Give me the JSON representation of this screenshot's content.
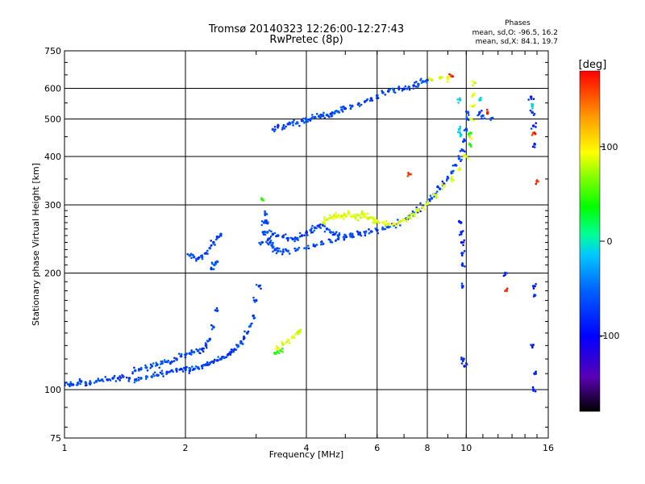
{
  "chart_data": {
    "type": "scatter",
    "title": "Tromsø 20140323 12:26:00-12:27:43",
    "subtitle": "RwPretec (8p)",
    "xlabel": "Frequency [MHz]",
    "ylabel": "Stationary phase Virtual Height [km]",
    "x_scale": "log",
    "y_scale": "log",
    "xlim": [
      1,
      16
    ],
    "ylim": [
      75,
      750
    ],
    "x_ticks": [
      1,
      2,
      4,
      6,
      8,
      10,
      16
    ],
    "y_ticks": [
      75,
      100,
      200,
      300,
      400,
      500,
      600,
      750
    ],
    "grid": true,
    "stats": {
      "heading": "Phases",
      "line_o": "mean, sd,O: -96.5, 16.2",
      "line_x": "mean, sd,X:  84.1, 19.7"
    },
    "colorbar": {
      "label": "[deg]",
      "ticks": [
        100,
        0,
        -100
      ],
      "range": [
        -180,
        180
      ]
    },
    "series": [
      {
        "phase": -100,
        "points": [
          [
            1.0,
            104
          ],
          [
            1.03,
            103
          ],
          [
            1.05,
            103
          ],
          [
            1.08,
            104
          ],
          [
            1.1,
            105
          ],
          [
            1.13,
            104
          ],
          [
            1.16,
            104
          ],
          [
            1.2,
            105
          ],
          [
            1.24,
            106
          ],
          [
            1.28,
            106
          ],
          [
            1.32,
            107
          ],
          [
            1.36,
            107
          ],
          [
            1.4,
            108
          ],
          [
            1.45,
            107
          ],
          [
            1.5,
            106
          ],
          [
            1.55,
            107
          ],
          [
            1.6,
            108
          ],
          [
            1.65,
            108
          ],
          [
            1.7,
            109
          ],
          [
            1.75,
            110
          ],
          [
            1.8,
            111
          ],
          [
            1.85,
            112
          ],
          [
            1.9,
            113
          ],
          [
            1.95,
            113
          ],
          [
            2.0,
            113
          ],
          [
            2.05,
            112
          ],
          [
            2.1,
            113
          ],
          [
            2.15,
            114
          ],
          [
            2.2,
            115
          ],
          [
            2.25,
            116
          ],
          [
            2.3,
            117
          ],
          [
            2.35,
            118
          ],
          [
            2.4,
            119
          ],
          [
            2.45,
            120
          ],
          [
            2.5,
            121
          ],
          [
            2.55,
            123
          ],
          [
            2.6,
            125
          ],
          [
            2.65,
            127
          ],
          [
            2.7,
            130
          ],
          [
            2.75,
            133
          ],
          [
            2.8,
            136
          ],
          [
            2.85,
            140
          ],
          [
            2.9,
            146
          ],
          [
            2.95,
            155
          ],
          [
            3.0,
            170
          ],
          [
            3.05,
            185
          ]
        ]
      },
      {
        "phase": -100,
        "points": [
          [
            1.5,
            112
          ],
          [
            1.55,
            113
          ],
          [
            1.6,
            114
          ],
          [
            1.65,
            115
          ],
          [
            1.7,
            116
          ],
          [
            1.75,
            117
          ],
          [
            1.8,
            118
          ],
          [
            1.85,
            118
          ],
          [
            1.9,
            120
          ],
          [
            1.95,
            122
          ],
          [
            2.0,
            123
          ],
          [
            2.05,
            124
          ],
          [
            2.1,
            125
          ],
          [
            2.15,
            126
          ],
          [
            2.2,
            127
          ],
          [
            2.25,
            130
          ],
          [
            2.3,
            135
          ],
          [
            2.35,
            145
          ],
          [
            2.4,
            160
          ]
        ]
      },
      {
        "phase": -100,
        "points": [
          [
            2.05,
            222
          ],
          [
            2.1,
            220
          ],
          [
            2.15,
            218
          ],
          [
            2.2,
            220
          ],
          [
            2.25,
            225
          ],
          [
            2.3,
            232
          ],
          [
            2.35,
            240
          ],
          [
            2.4,
            248
          ],
          [
            2.45,
            252
          ],
          [
            2.32,
            205
          ],
          [
            2.36,
            210
          ],
          [
            2.4,
            214
          ]
        ]
      },
      {
        "phase": -100,
        "points": [
          [
            3.1,
            240
          ],
          [
            3.12,
            255
          ],
          [
            3.14,
            270
          ],
          [
            3.16,
            285
          ],
          [
            3.18,
            270
          ],
          [
            3.2,
            255
          ],
          [
            3.22,
            245
          ],
          [
            3.25,
            240
          ],
          [
            3.28,
            236
          ],
          [
            3.3,
            233
          ],
          [
            3.35,
            230
          ],
          [
            3.4,
            228
          ],
          [
            3.5,
            227
          ],
          [
            3.6,
            228
          ],
          [
            3.8,
            230
          ],
          [
            4.0,
            232
          ],
          [
            4.2,
            235
          ],
          [
            4.4,
            238
          ],
          [
            4.6,
            241
          ],
          [
            4.8,
            245
          ],
          [
            5.0,
            248
          ],
          [
            5.2,
            250
          ],
          [
            5.4,
            252
          ],
          [
            5.6,
            254
          ],
          [
            5.8,
            256
          ],
          [
            6.0,
            258
          ],
          [
            6.2,
            260
          ],
          [
            6.4,
            263
          ],
          [
            6.6,
            266
          ],
          [
            6.8,
            270
          ],
          [
            7.0,
            275
          ],
          [
            7.2,
            280
          ],
          [
            7.4,
            286
          ],
          [
            7.6,
            292
          ],
          [
            7.8,
            298
          ],
          [
            8.0,
            305
          ],
          [
            8.2,
            312
          ],
          [
            8.4,
            320
          ],
          [
            8.6,
            330
          ],
          [
            8.8,
            340
          ],
          [
            9.0,
            352
          ],
          [
            9.2,
            365
          ],
          [
            9.4,
            380
          ],
          [
            9.6,
            395
          ],
          [
            9.8,
            415
          ],
          [
            9.9,
            440
          ],
          [
            10.0,
            470
          ],
          [
            10.05,
            500
          ],
          [
            10.1,
            520
          ]
        ]
      },
      {
        "phase": -100,
        "points": [
          [
            3.3,
            252
          ],
          [
            3.4,
            250
          ],
          [
            3.5,
            248
          ],
          [
            3.6,
            246
          ],
          [
            3.7,
            245
          ],
          [
            3.8,
            246
          ],
          [
            3.9,
            250
          ],
          [
            4.0,
            254
          ],
          [
            4.1,
            258
          ],
          [
            4.2,
            262
          ],
          [
            4.3,
            265
          ],
          [
            4.4,
            266
          ],
          [
            4.5,
            260
          ],
          [
            4.6,
            255
          ],
          [
            4.7,
            252
          ],
          [
            4.8,
            250
          ],
          [
            5.0,
            250
          ],
          [
            5.2,
            252
          ],
          [
            5.4,
            254
          ]
        ]
      },
      {
        "phase": -100,
        "points": [
          [
            3.3,
            470
          ],
          [
            3.4,
            480
          ],
          [
            3.5,
            475
          ],
          [
            3.6,
            485
          ],
          [
            3.7,
            490
          ],
          [
            3.8,
            488
          ],
          [
            3.9,
            495
          ],
          [
            4.0,
            498
          ],
          [
            4.1,
            500
          ],
          [
            4.2,
            505
          ],
          [
            4.3,
            508
          ],
          [
            4.4,
            510
          ],
          [
            4.5,
            512
          ],
          [
            4.6,
            515
          ],
          [
            4.7,
            518
          ],
          [
            4.8,
            522
          ],
          [
            4.9,
            528
          ],
          [
            5.0,
            532
          ],
          [
            5.2,
            540
          ],
          [
            5.4,
            548
          ],
          [
            5.6,
            555
          ],
          [
            5.8,
            565
          ],
          [
            6.0,
            575
          ],
          [
            6.2,
            585
          ]
        ]
      },
      {
        "phase": -100,
        "points": [
          [
            6.4,
            590
          ],
          [
            6.6,
            595
          ],
          [
            6.8,
            600
          ],
          [
            7.0,
            598
          ],
          [
            7.2,
            605
          ],
          [
            7.4,
            610
          ],
          [
            7.6,
            615
          ],
          [
            7.8,
            625
          ],
          [
            8.0,
            630
          ],
          [
            10.8,
            520
          ],
          [
            11.0,
            510
          ],
          [
            11.5,
            500
          ]
        ]
      },
      {
        "phase": -110,
        "points": [
          [
            9.7,
            270
          ],
          [
            9.72,
            255
          ],
          [
            9.74,
            240
          ],
          [
            9.76,
            225
          ],
          [
            9.78,
            210
          ],
          [
            9.8,
            185
          ],
          [
            9.85,
            120
          ],
          [
            9.9,
            115
          ],
          [
            12.5,
            200
          ],
          [
            14.5,
            570
          ],
          [
            14.6,
            520
          ],
          [
            14.7,
            480
          ],
          [
            14.8,
            430
          ],
          [
            14.7,
            185
          ],
          [
            14.8,
            175
          ],
          [
            14.6,
            130
          ],
          [
            14.8,
            110
          ],
          [
            14.7,
            100
          ]
        ]
      },
      {
        "phase": 90,
        "points": [
          [
            4.4,
            270
          ],
          [
            4.5,
            275
          ],
          [
            4.6,
            278
          ],
          [
            4.7,
            280
          ],
          [
            4.8,
            282
          ],
          [
            4.9,
            280
          ],
          [
            5.0,
            283
          ],
          [
            5.1,
            285
          ],
          [
            5.2,
            280
          ],
          [
            5.3,
            278
          ],
          [
            5.4,
            282
          ],
          [
            5.5,
            284
          ],
          [
            5.6,
            280
          ],
          [
            5.7,
            276
          ],
          [
            5.8,
            278
          ],
          [
            5.9,
            274
          ],
          [
            6.0,
            272
          ],
          [
            6.2,
            270
          ],
          [
            6.4,
            268
          ],
          [
            6.6,
            268
          ],
          [
            6.8,
            270
          ],
          [
            7.0,
            275
          ],
          [
            7.2,
            279
          ],
          [
            7.4,
            284
          ],
          [
            7.6,
            290
          ],
          [
            7.8,
            296
          ],
          [
            8.0,
            302
          ],
          [
            8.4,
            318
          ],
          [
            8.8,
            335
          ],
          [
            9.2,
            350
          ],
          [
            9.6,
            370
          ],
          [
            10.0,
            400
          ],
          [
            10.2,
            450
          ],
          [
            10.3,
            500
          ],
          [
            10.4,
            540
          ],
          [
            10.45,
            580
          ],
          [
            10.5,
            620
          ]
        ]
      },
      {
        "phase": 90,
        "points": [
          [
            3.4,
            128
          ],
          [
            3.5,
            131
          ],
          [
            3.6,
            134
          ],
          [
            3.7,
            137
          ],
          [
            3.8,
            140
          ],
          [
            3.85,
            142
          ],
          [
            8.2,
            630
          ],
          [
            8.6,
            640
          ],
          [
            9.0,
            635
          ]
        ]
      },
      {
        "phase": 40,
        "points": [
          [
            3.35,
            124
          ],
          [
            3.45,
            126
          ],
          [
            3.1,
            310
          ],
          [
            10.2,
            430
          ],
          [
            10.25,
            460
          ]
        ]
      },
      {
        "phase": -40,
        "points": [
          [
            9.6,
            470
          ],
          [
            9.7,
            455
          ],
          [
            9.65,
            560
          ],
          [
            10.8,
            560
          ],
          [
            14.6,
            540
          ]
        ]
      },
      {
        "phase": 170,
        "points": [
          [
            7.2,
            360
          ],
          [
            9.2,
            645
          ],
          [
            11.3,
            520
          ],
          [
            12.6,
            180
          ],
          [
            14.7,
            460
          ],
          [
            15.0,
            345
          ]
        ]
      }
    ]
  }
}
